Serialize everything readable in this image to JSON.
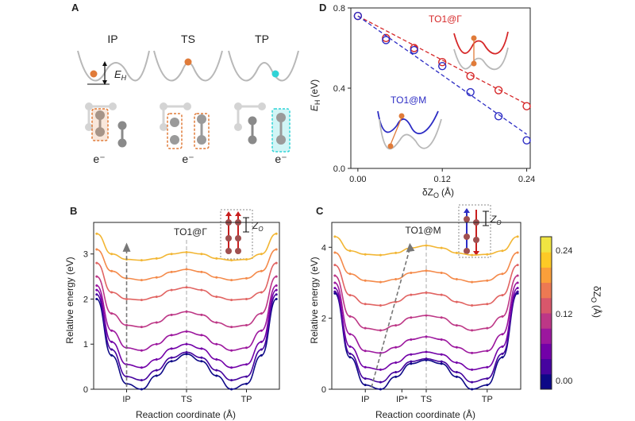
{
  "panelA": {
    "letter": "A",
    "labels": [
      "IP",
      "TS",
      "TP"
    ],
    "eh_label": "E",
    "eh_sub": "H",
    "electron": "e⁻",
    "colors": {
      "ball_ip": "#e07b39",
      "ball_tp": "#2fd3d6",
      "well": "#b8b8b8",
      "box_orange": "#e07b39",
      "box_cyan": "#2fd3d6"
    }
  },
  "colorbar": {
    "label": "δZ",
    "label_sub": "O",
    "unit": "(Å)",
    "ticks": [
      "0.24",
      "0.12",
      "0.00"
    ],
    "colors": [
      "#0d0887",
      "#46039f",
      "#7201a8",
      "#9c179e",
      "#bd3786",
      "#d8576b",
      "#ed7953",
      "#fb9f3a",
      "#fdca26",
      "#f0e442"
    ]
  },
  "chart_data": [
    {
      "panel": "B",
      "type": "line",
      "annotation": "TO1@Γ",
      "inset_label": "Z",
      "inset_sub": "O",
      "xlabel": "Reaction coordinate (Å)",
      "ylabel": "Relative energy (eV)",
      "xtick_labels": [
        "IP",
        "TS",
        "TP"
      ],
      "xticks": [
        -1,
        0,
        1
      ],
      "yticks": [
        0,
        1,
        2,
        3
      ],
      "ylim": [
        0,
        3.7
      ],
      "xlim": [
        -1.55,
        1.55
      ],
      "legend": "colorbar right",
      "series": [
        {
          "dZ": 0.0,
          "color": "#0d0887",
          "values": [
            2.0,
            0.75,
            0.12,
            0.0,
            0.3,
            0.62,
            0.78,
            0.62,
            0.3,
            0.0,
            0.12,
            0.75,
            2.0
          ]
        },
        {
          "dZ": 0.04,
          "color": "#46039f",
          "values": [
            2.1,
            0.88,
            0.28,
            0.2,
            0.42,
            0.7,
            0.82,
            0.7,
            0.42,
            0.2,
            0.28,
            0.88,
            2.1
          ]
        },
        {
          "dZ": 0.08,
          "color": "#7201a8",
          "values": [
            2.2,
            1.05,
            0.55,
            0.48,
            0.66,
            0.9,
            1.0,
            0.9,
            0.66,
            0.48,
            0.55,
            1.05,
            2.2
          ]
        },
        {
          "dZ": 0.12,
          "color": "#9c179e",
          "values": [
            2.3,
            1.3,
            0.92,
            0.86,
            1.0,
            1.2,
            1.28,
            1.2,
            1.0,
            0.86,
            0.92,
            1.3,
            2.3
          ]
        },
        {
          "dZ": 0.16,
          "color": "#bd3786",
          "values": [
            2.5,
            1.68,
            1.42,
            1.38,
            1.48,
            1.65,
            1.72,
            1.65,
            1.48,
            1.38,
            1.42,
            1.68,
            2.5
          ]
        },
        {
          "dZ": 0.2,
          "color": "#e16462",
          "values": [
            2.8,
            2.15,
            2.0,
            1.98,
            2.05,
            2.2,
            2.26,
            2.2,
            2.05,
            1.98,
            2.0,
            2.15,
            2.8
          ]
        },
        {
          "dZ": 0.24,
          "color": "#f48a4a",
          "values": [
            3.1,
            2.62,
            2.46,
            2.42,
            2.48,
            2.6,
            2.66,
            2.6,
            2.48,
            2.42,
            2.46,
            2.62,
            3.1
          ]
        },
        {
          "dZ": 0.28,
          "color": "#f2b634",
          "values": [
            3.45,
            3.0,
            2.88,
            2.86,
            2.9,
            3.0,
            3.04,
            3.0,
            2.9,
            2.86,
            2.88,
            3.0,
            3.45
          ]
        }
      ]
    },
    {
      "panel": "C",
      "type": "line",
      "annotation": "TO1@M",
      "inset_label": "Z",
      "inset_sub": "O",
      "xlabel": "Reaction coordinate (Å)",
      "ylabel": "Relative energy (eV)",
      "xtick_labels": [
        "IP",
        "IP*",
        "TS",
        "TP"
      ],
      "xticks": [
        -1,
        -0.4,
        0,
        1
      ],
      "yticks": [
        0,
        2,
        4
      ],
      "ylim": [
        0,
        4.7
      ],
      "xlim": [
        -1.55,
        1.55
      ],
      "legend": "colorbar right",
      "series": [
        {
          "dZ": 0.0,
          "color": "#0d0887",
          "values": [
            2.7,
            0.9,
            0.12,
            0.0,
            0.35,
            0.72,
            0.82,
            0.72,
            0.35,
            0.0,
            0.12,
            0.9,
            2.7
          ]
        },
        {
          "dZ": 0.04,
          "color": "#46039f",
          "values": [
            2.75,
            1.0,
            0.3,
            0.2,
            0.48,
            0.78,
            0.86,
            0.78,
            0.48,
            0.2,
            0.3,
            1.0,
            2.75
          ]
        },
        {
          "dZ": 0.08,
          "color": "#7201a8",
          "values": [
            2.85,
            1.2,
            0.62,
            0.55,
            0.75,
            0.98,
            1.05,
            0.98,
            0.75,
            0.55,
            0.62,
            1.2,
            2.85
          ]
        },
        {
          "dZ": 0.12,
          "color": "#9c179e",
          "values": [
            3.0,
            1.55,
            1.08,
            1.02,
            1.18,
            1.4,
            1.48,
            1.4,
            1.18,
            1.02,
            1.08,
            1.55,
            3.0
          ]
        },
        {
          "dZ": 0.16,
          "color": "#bd3786",
          "values": [
            3.2,
            2.05,
            1.72,
            1.66,
            1.8,
            2.02,
            2.08,
            2.02,
            1.8,
            1.66,
            1.72,
            2.05,
            3.2
          ]
        },
        {
          "dZ": 0.2,
          "color": "#e16462",
          "values": [
            3.5,
            2.65,
            2.4,
            2.36,
            2.46,
            2.66,
            2.72,
            2.66,
            2.46,
            2.36,
            2.4,
            2.65,
            3.5
          ]
        },
        {
          "dZ": 0.24,
          "color": "#f48a4a",
          "values": [
            3.85,
            3.25,
            3.06,
            3.02,
            3.1,
            3.28,
            3.34,
            3.28,
            3.1,
            3.02,
            3.06,
            3.25,
            3.85
          ]
        },
        {
          "dZ": 0.28,
          "color": "#f2b634",
          "values": [
            4.3,
            3.9,
            3.8,
            3.78,
            3.84,
            3.98,
            4.05,
            3.98,
            3.84,
            3.78,
            3.8,
            3.9,
            4.3
          ]
        }
      ]
    },
    {
      "panel": "D",
      "type": "scatter",
      "xlabel": "δZ",
      "xlabel_sub": "O",
      "xlabel_unit": "(Å)",
      "ylabel": "E",
      "ylabel_sub": "H",
      "ylabel_unit": "(eV)",
      "xlim": [
        -0.01,
        0.245
      ],
      "ylim": [
        0,
        0.8
      ],
      "xticks": [
        0.0,
        0.12,
        0.24
      ],
      "xtick_labels": [
        "0.00",
        "0.12",
        "0.24"
      ],
      "yticks": [
        0.0,
        0.4,
        0.8
      ],
      "ytick_labels": [
        "0.0",
        "0.4",
        "0.8"
      ],
      "series": [
        {
          "name": "TO1@Γ",
          "color": "#d62728",
          "x": [
            0.0,
            0.04,
            0.08,
            0.12,
            0.16,
            0.2,
            0.24
          ],
          "y": [
            0.76,
            0.65,
            0.6,
            0.53,
            0.46,
            0.39,
            0.31
          ],
          "fit": [
            [
              0.0,
              0.76
            ],
            [
              0.24,
              0.32
            ]
          ]
        },
        {
          "name": "TO1@M",
          "color": "#2c2cc4",
          "x": [
            0.0,
            0.04,
            0.08,
            0.12,
            0.16,
            0.2,
            0.24
          ],
          "y": [
            0.76,
            0.64,
            0.59,
            0.51,
            0.38,
            0.26,
            0.14
          ],
          "fit": [
            [
              0.0,
              0.76
            ],
            [
              0.24,
              0.17
            ]
          ]
        }
      ]
    }
  ]
}
